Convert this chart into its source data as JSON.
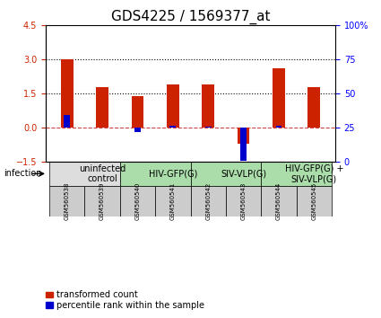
{
  "title": "GDS4225 / 1569377_at",
  "samples": [
    "GSM560538",
    "GSM560539",
    "GSM560540",
    "GSM560541",
    "GSM560542",
    "GSM560543",
    "GSM560544",
    "GSM560545"
  ],
  "transformed_count": [
    3.0,
    1.8,
    1.4,
    1.9,
    1.9,
    -0.7,
    2.6,
    1.8
  ],
  "percentile_rank": [
    0.55,
    0.02,
    -0.2,
    0.1,
    0.04,
    -1.45,
    0.1,
    0.02
  ],
  "ylim": [
    -1.5,
    4.5
  ],
  "right_ylim": [
    0,
    100
  ],
  "yticks_left": [
    -1.5,
    0,
    1.5,
    3,
    4.5
  ],
  "yticks_right": [
    0,
    25,
    50,
    75,
    100
  ],
  "hlines": [
    0,
    1.5,
    3.0
  ],
  "hline_styles": [
    "dashed",
    "dotted",
    "dotted"
  ],
  "hline_colors": [
    "#cc4444",
    "#000000",
    "#000000"
  ],
  "bar_color_red": "#cc2200",
  "bar_color_blue": "#0000cc",
  "bar_width": 0.35,
  "infection_groups": [
    {
      "label": "uninfected\ncontrol",
      "start": 0,
      "end": 2,
      "color": "#dddddd"
    },
    {
      "label": "HIV-GFP(G)",
      "start": 2,
      "end": 4,
      "color": "#aaddaa"
    },
    {
      "label": "SIV-VLP(G)",
      "start": 4,
      "end": 6,
      "color": "#aaddaa"
    },
    {
      "label": "HIV-GFP(G) +\nSIV-VLP(G)",
      "start": 6,
      "end": 8,
      "color": "#aaddaa"
    }
  ],
  "legend_red_label": "transformed count",
  "legend_blue_label": "percentile rank within the sample",
  "infection_label": "infection",
  "title_fontsize": 11,
  "tick_fontsize": 7,
  "label_fontsize": 7,
  "group_label_fontsize": 7
}
